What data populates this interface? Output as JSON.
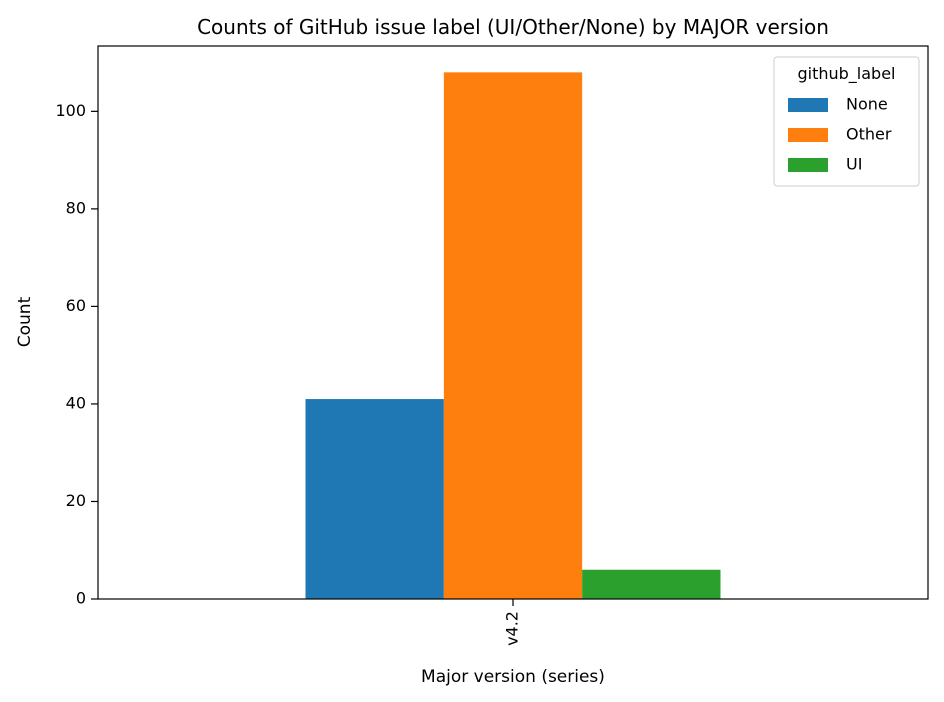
{
  "chart_data": {
    "type": "bar",
    "title": "Counts of GitHub issue label (UI/Other/None) by MAJOR version",
    "xlabel": "Major version (series)",
    "ylabel": "Count",
    "categories": [
      "v4.2"
    ],
    "ylim": [
      0,
      113.4
    ],
    "yticks": [
      0,
      20,
      40,
      60,
      80,
      100
    ],
    "grid": false,
    "legend": {
      "title": "github_label",
      "placement": "top-right"
    },
    "series": [
      {
        "name": "None",
        "values": [
          41
        ],
        "color": "#1f77b4"
      },
      {
        "name": "Other",
        "values": [
          108
        ],
        "color": "#ff7f0e"
      },
      {
        "name": "UI",
        "values": [
          6
        ],
        "color": "#2ca02c"
      }
    ]
  }
}
